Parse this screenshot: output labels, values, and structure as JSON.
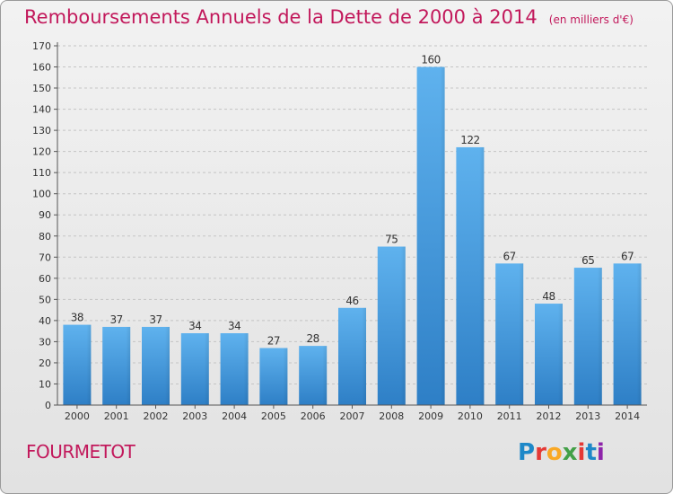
{
  "header": {
    "title": "Remboursements Annuels de la Dette de 2000 à 2014",
    "unit": "(en milliers d'€)"
  },
  "footer": {
    "commune": "FOURMETOT",
    "logo_text": "Proxiti"
  },
  "chart_data": {
    "type": "bar",
    "title": "Remboursements Annuels de la Dette de 2000 à 2014",
    "xlabel": "",
    "ylabel": "",
    "ylim": [
      0,
      170
    ],
    "yticks": [
      0,
      10,
      20,
      30,
      40,
      50,
      60,
      70,
      80,
      90,
      100,
      110,
      120,
      130,
      140,
      150,
      160,
      170
    ],
    "grid": "horizontal-dashed",
    "categories": [
      "2000",
      "2001",
      "2002",
      "2003",
      "2004",
      "2005",
      "2006",
      "2007",
      "2008",
      "2009",
      "2010",
      "2011",
      "2012",
      "2013",
      "2014"
    ],
    "values": [
      38,
      37,
      37,
      34,
      34,
      27,
      28,
      46,
      75,
      160,
      122,
      67,
      48,
      65,
      67
    ],
    "bar_color": "#4a9fe0"
  }
}
